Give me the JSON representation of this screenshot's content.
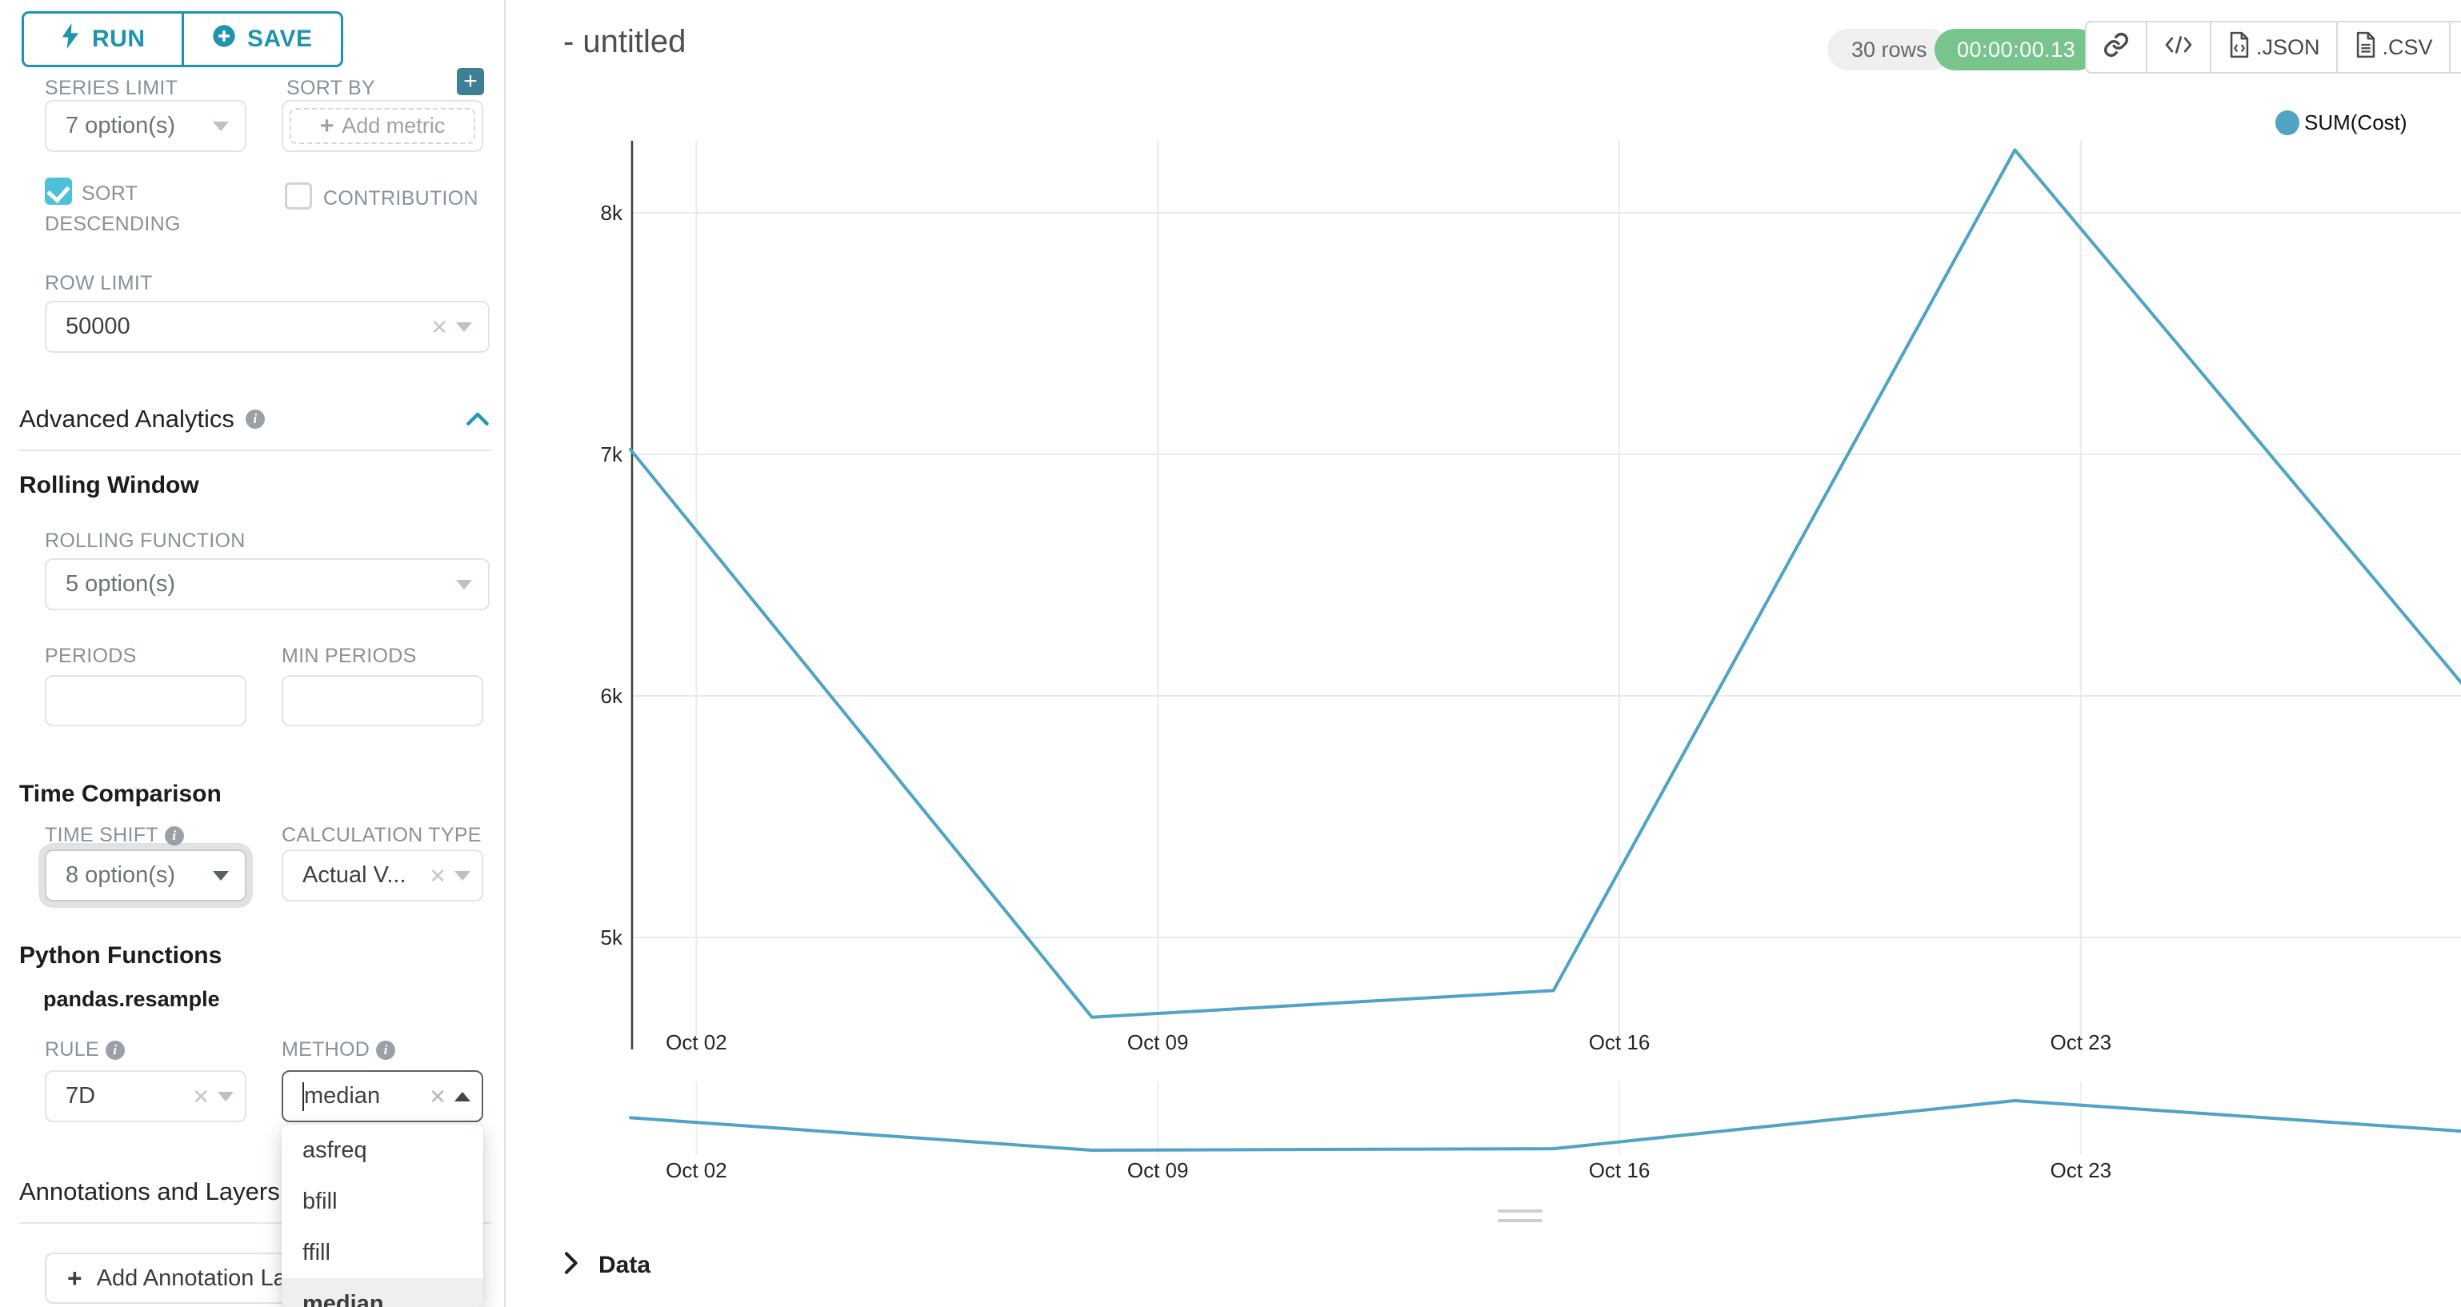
{
  "app": {
    "accent": "#1f93ad",
    "checkbox_color": "#4cc1d9"
  },
  "sidebar": {
    "run_button": "RUN",
    "save_button": "SAVE",
    "series_limit_label": "SERIES LIMIT",
    "series_limit_value": "7 option(s)",
    "sort_by_label": "SORT BY",
    "sort_by_placeholder": "Add metric",
    "sort_descending_line1": "SORT",
    "sort_descending_line2": "DESCENDING",
    "sort_descending_checked": true,
    "contribution_label": "CONTRIBUTION",
    "contribution_checked": false,
    "row_limit_label": "ROW LIMIT",
    "row_limit_value": "50000",
    "advanced_analytics_title": "Advanced Analytics",
    "rolling_window_title": "Rolling Window",
    "rolling_function_label": "ROLLING FUNCTION",
    "rolling_function_value": "5 option(s)",
    "periods_label": "PERIODS",
    "min_periods_label": "MIN PERIODS",
    "time_comparison_title": "Time Comparison",
    "time_shift_label": "TIME SHIFT",
    "time_shift_value": "8 option(s)",
    "calculation_type_label": "CALCULATION TYPE",
    "calculation_type_value": "Actual V...",
    "python_functions_title": "Python Functions",
    "pandas_resample_label": "pandas.resample",
    "rule_label": "RULE",
    "rule_value": "7D",
    "method_label": "METHOD",
    "method_value": "median",
    "method_options": [
      "asfreq",
      "bfill",
      "ffill",
      "median"
    ],
    "method_selected_option": "median",
    "annotations_title": "Annotations and Layers",
    "add_annotation_button": "Add Annotation Layer"
  },
  "header": {
    "title": "- untitled",
    "rows_badge": "30 rows",
    "timer_badge": "00:00:00.13",
    "export_json_label": ".JSON",
    "export_csv_label": ".CSV"
  },
  "data_panel": {
    "title": "Data"
  },
  "chart_data": {
    "type": "line",
    "title": "- untitled",
    "legend": [
      "SUM(Cost)"
    ],
    "legend_position": "top-right",
    "grid": true,
    "line_color": "#4FA3C5",
    "series": [
      {
        "name": "SUM(Cost)",
        "x": [
          "Oct 01",
          "Oct 08",
          "Oct 15",
          "Oct 22",
          "Oct 29"
        ],
        "day_offsets": [
          0,
          7,
          14,
          21,
          28
        ],
        "values": [
          7020,
          4670,
          4780,
          8260,
          5980
        ]
      }
    ],
    "x_ticks": [
      {
        "label": "Oct 02",
        "day": 1
      },
      {
        "label": "Oct 09",
        "day": 8
      },
      {
        "label": "Oct 16",
        "day": 15
      },
      {
        "label": "Oct 23",
        "day": 22
      }
    ],
    "y_ticks": [
      {
        "label": "5k",
        "value": 5000
      },
      {
        "label": "6k",
        "value": 6000
      },
      {
        "label": "7k",
        "value": 7000
      },
      {
        "label": "8k",
        "value": 8000
      }
    ],
    "ylim": [
      4560,
      8460
    ],
    "has_preview_strip": true
  }
}
